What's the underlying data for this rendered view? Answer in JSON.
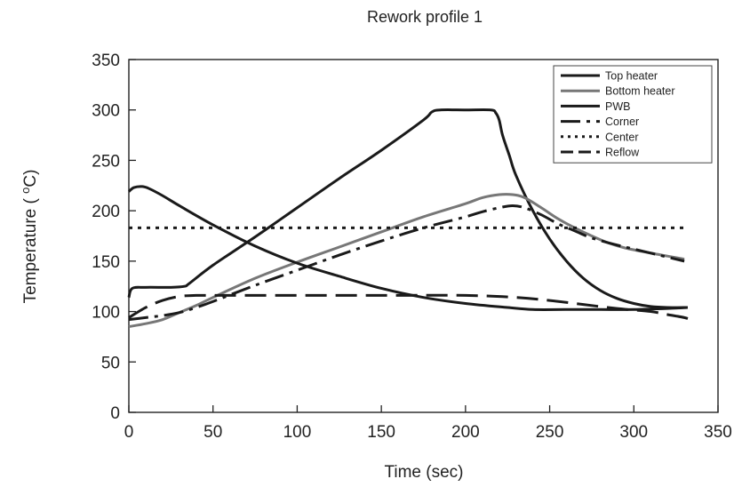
{
  "chart_data": {
    "type": "line",
    "title": "Rework profile 1",
    "xlabel": "Time (sec)",
    "ylabel_pre": "Temperature ( ",
    "ylabel_sup": "o",
    "ylabel_post": "C)",
    "xlim": [
      0,
      350
    ],
    "ylim": [
      0,
      350
    ],
    "x_ticks": [
      "0",
      "50",
      "100",
      "150",
      "200",
      "250",
      "300",
      "350"
    ],
    "y_ticks": [
      "0",
      "50",
      "100",
      "150",
      "200",
      "250",
      "300",
      "350"
    ],
    "x_tick_values": [
      0,
      50,
      100,
      150,
      200,
      250,
      300,
      350
    ],
    "y_tick_values": [
      0,
      50,
      100,
      150,
      200,
      250,
      300,
      350
    ],
    "grid": false,
    "legend_position": "top-right",
    "series": [
      {
        "name": "Top heater",
        "color": "#1a1a1a",
        "dash": "solid",
        "points": [
          [
            0,
            114
          ],
          [
            2,
            123
          ],
          [
            10,
            124
          ],
          [
            25,
            124
          ],
          [
            33,
            125
          ],
          [
            36,
            128
          ],
          [
            50,
            146
          ],
          [
            75,
            174
          ],
          [
            100,
            203
          ],
          [
            125,
            232
          ],
          [
            150,
            260
          ],
          [
            175,
            290
          ],
          [
            180,
            298
          ],
          [
            185,
            300
          ],
          [
            200,
            300
          ],
          [
            215,
            300
          ],
          [
            218,
            297
          ],
          [
            220,
            290
          ],
          [
            222,
            275
          ],
          [
            226,
            255
          ],
          [
            230,
            235
          ],
          [
            240,
            200
          ],
          [
            250,
            172
          ],
          [
            260,
            150
          ],
          [
            270,
            133
          ],
          [
            280,
            121
          ],
          [
            290,
            113
          ],
          [
            300,
            108
          ],
          [
            310,
            105
          ],
          [
            320,
            104
          ],
          [
            332,
            104
          ]
        ]
      },
      {
        "name": "Bottom heater",
        "color": "#777777",
        "dash": "solid",
        "points": [
          [
            0,
            85
          ],
          [
            10,
            88
          ],
          [
            20,
            92
          ],
          [
            30,
            99
          ],
          [
            40,
            106
          ],
          [
            50,
            114
          ],
          [
            75,
            133
          ],
          [
            100,
            149
          ],
          [
            125,
            164
          ],
          [
            150,
            179
          ],
          [
            175,
            194
          ],
          [
            200,
            207
          ],
          [
            210,
            213
          ],
          [
            220,
            216
          ],
          [
            228,
            216
          ],
          [
            235,
            213
          ],
          [
            245,
            203
          ],
          [
            255,
            192
          ],
          [
            265,
            183
          ],
          [
            275,
            175
          ],
          [
            285,
            168
          ],
          [
            295,
            163
          ],
          [
            310,
            158
          ],
          [
            320,
            155
          ],
          [
            330,
            152
          ]
        ]
      },
      {
        "name": "PWB",
        "color": "#1a1a1a",
        "dash": "solid",
        "points": [
          [
            0,
            219
          ],
          [
            3,
            223
          ],
          [
            8,
            224
          ],
          [
            12,
            222
          ],
          [
            20,
            215
          ],
          [
            30,
            205
          ],
          [
            50,
            186
          ],
          [
            75,
            165
          ],
          [
            100,
            148
          ],
          [
            125,
            135
          ],
          [
            150,
            123
          ],
          [
            175,
            114
          ],
          [
            200,
            108
          ],
          [
            225,
            104
          ],
          [
            240,
            102
          ],
          [
            260,
            102
          ],
          [
            280,
            102
          ],
          [
            300,
            102
          ],
          [
            320,
            103
          ],
          [
            332,
            104
          ]
        ]
      },
      {
        "name": "Corner",
        "color": "#1a1a1a",
        "dash": "dashdot",
        "points": [
          [
            0,
            92
          ],
          [
            10,
            94
          ],
          [
            20,
            96
          ],
          [
            30,
            99
          ],
          [
            40,
            104
          ],
          [
            50,
            110
          ],
          [
            75,
            126
          ],
          [
            100,
            141
          ],
          [
            125,
            156
          ],
          [
            150,
            170
          ],
          [
            175,
            183
          ],
          [
            200,
            194
          ],
          [
            210,
            199
          ],
          [
            220,
            203
          ],
          [
            228,
            205
          ],
          [
            235,
            203
          ],
          [
            245,
            196
          ],
          [
            255,
            187
          ],
          [
            265,
            180
          ],
          [
            275,
            173
          ],
          [
            290,
            166
          ],
          [
            300,
            162
          ],
          [
            315,
            156
          ],
          [
            330,
            150
          ]
        ]
      },
      {
        "name": "Center",
        "color": "#1a1a1a",
        "dash": "dot",
        "points": [
          [
            0,
            183
          ],
          [
            332,
            183
          ]
        ]
      },
      {
        "name": "Reflow",
        "color": "#1a1a1a",
        "dash": "longdash",
        "points": [
          [
            0,
            94
          ],
          [
            10,
            104
          ],
          [
            20,
            111
          ],
          [
            30,
            115
          ],
          [
            40,
            116
          ],
          [
            50,
            116
          ],
          [
            100,
            116
          ],
          [
            150,
            116
          ],
          [
            200,
            116
          ],
          [
            230,
            114
          ],
          [
            250,
            111
          ],
          [
            270,
            107
          ],
          [
            290,
            103
          ],
          [
            310,
            100
          ],
          [
            320,
            97
          ],
          [
            330,
            94
          ],
          [
            336,
            91
          ]
        ]
      }
    ]
  }
}
